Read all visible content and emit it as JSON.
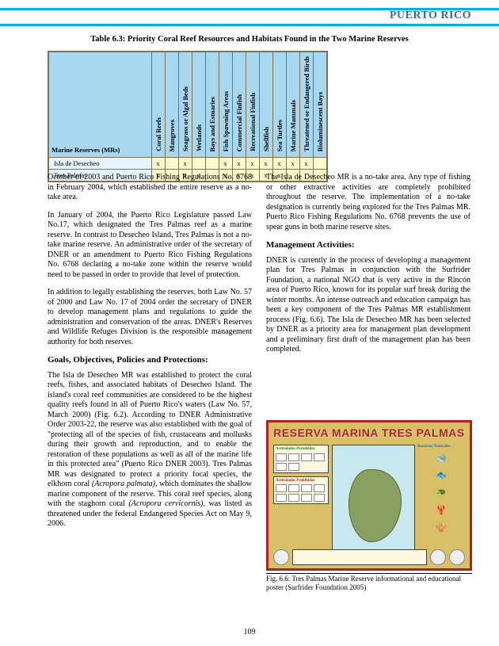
{
  "header": {
    "title": "PUERTO RICO"
  },
  "table": {
    "caption": "Table 6.3: Priority Coral Reef Resources and Habitats Found in the Two Marine Reserves",
    "mr_header": "Marine Reserves (MRs)",
    "columns": [
      "Coral Reefs",
      "Mangroves",
      "Seagrass or Algal Beds",
      "Wetlands",
      "Bays and Estuaries",
      "Fish Spawning Areas",
      "Commercial Finfish",
      "Recreational Finfish",
      "Shellfish",
      "Sea Turtles",
      "Marine Mammals",
      "Threatened or Endangered Birds",
      "Bioluminescent Bays"
    ],
    "rows": [
      {
        "label": "Isla de Desecheo",
        "cells": [
          "x",
          "",
          "x",
          "",
          "",
          "x",
          "x",
          "x",
          "x",
          "x",
          "x",
          "x",
          ""
        ]
      },
      {
        "label": "Tres Palmas",
        "cells": [
          "x",
          "",
          "x",
          "x",
          "",
          "x",
          "x",
          "x",
          "x",
          "x",
          "",
          "",
          ""
        ]
      }
    ]
  },
  "left_col": {
    "p1": "October of 2003 and Puerto Rico Fishing Regulations No. 6768 in February 2004, which established the entire reserve as a no-take area.",
    "p2": "In January of 2004, the Puerto Rico Legislature passed Law No.17, which designated the Tres Palmas reef as a marine reserve.  In contrast to Desecheo Island, Tres Palmas is not a no-take marine reserve.  An administrative order of the secretary of DNER or an amendment to Puerto Rico Fishing Regulations No. 6768 declaring a no-take zone within the reserve would need to be passed in order to provide that level of protection.",
    "p3": "In addition to legally establishing the reserves, both Law No. 57 of 2000 and Law No. 17 of 2004 order the secretary of DNER to develop management plans and regulations to guide the administration and conservation of the areas.  DNER's Reserves and Wildlife Refuges Division is the responsible management authority for both reserves.",
    "sec1": "Goals, Objectives, Policies and Protections:",
    "p4a": "The Isla de Desecheo MR was established to protect the coral reefs, fishes, and associated habitats of Desecheo Island.  The island's coral reef communities are considered to be the highest quality reefs found in all of Puerto Rico's waters (Law No. 57, March 2000) (Fig. 6.2).  According to DNER Administrative Order 2003-22, the reserve was also established with the goal of \"protecting all of the species of fish, crustaceans and mollusks during their growth and reproduction, and to enable the restoration of these populations as well as all of the marine life in this protected area\" (Puerto Rico DNER 2003).  Tres Palmas MR was designated to protect a priority focal species, the elkhorn coral ",
    "p4b": "(Acropora palmata)",
    "p4c": ", which dominates the shallow marine component of the reserve.  This coral reef species, along with the staghorn coral ",
    "p4d": "(Acropora cervicornis)",
    "p4e": ", was listed as threatened under the federal Endangered Species Act on May 9, 2006."
  },
  "right_col": {
    "p1": "The Isla de Desecheo MR is a no-take area.  Any type of fishing or other extractive activities are completely prohibited throughout the reserve.  The implementation of a no-take designation is currently being explored for the Tres Palmas MR.  Puerto Rico Fishing Regulations No. 6768 prevents the use of spear guns in both marine reserve sites.",
    "sec1": "Management Activities:",
    "p2": "DNER is currently in the process of developing a management plan for Tres Palmas in conjunction with the Surfrider Foundation, a national NGO that is very active in the Rincón area of Puerto Rico, known for its popular surf break during the winter months.  An intense outreach and education campaign has been a key component of the Tres Palmas MR establishment process (Fig. 6.6).   The Isla de Desecheo MR has been selected by DNER as a priority area for management plan development and a preliminary first draft of the management plan has been completed."
  },
  "figure": {
    "poster_title": "RESERVA MARINA TRES PALMAS",
    "left_perm": "Actividades Permitidas",
    "left_proh": "Actividades Prohibidas",
    "right_head": "Recursos Naturales",
    "caption": "Fig. 6.6: Tres Palmas Marine Reserve informational and educational poster (Surfrider Foundation 2005)"
  },
  "page_number": "109"
}
